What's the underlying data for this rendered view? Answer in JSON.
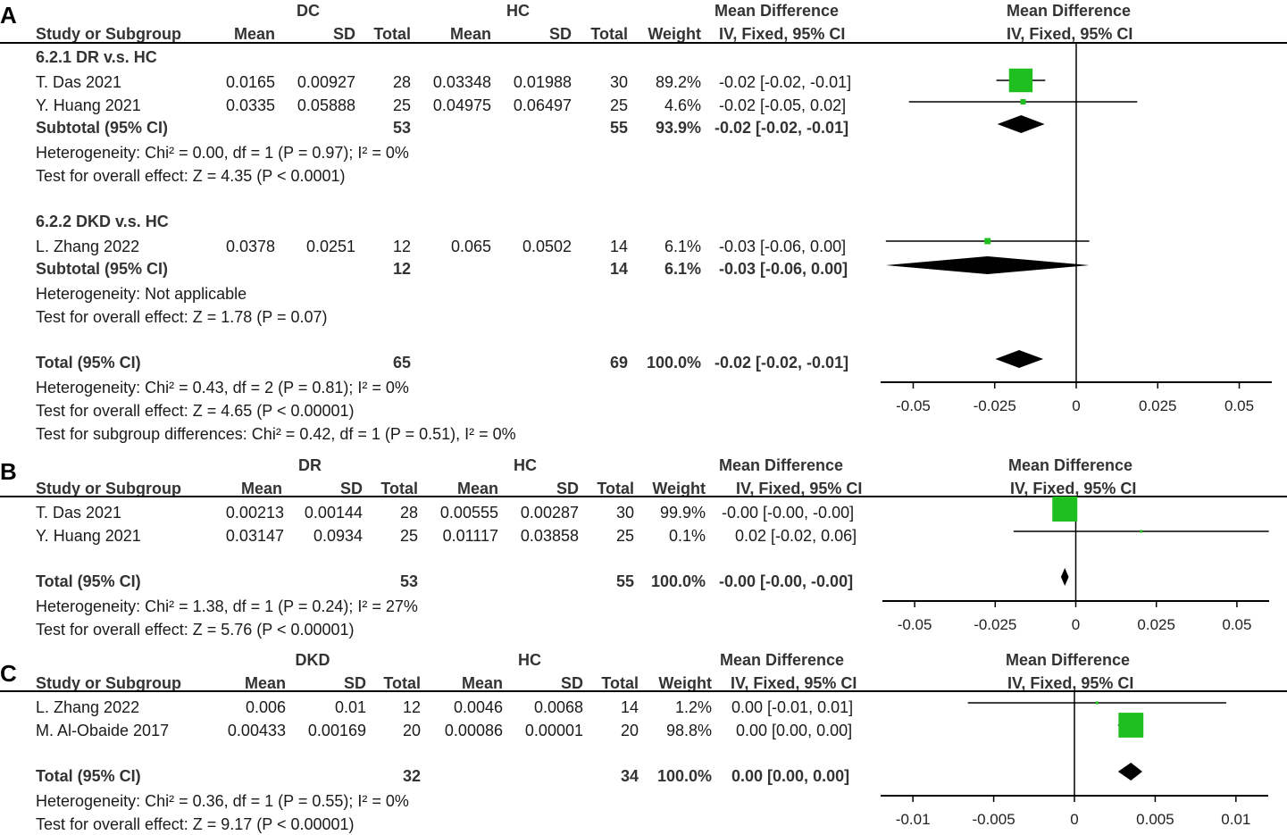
{
  "colors": {
    "study_square": "#1fbf1f",
    "diamond": "#000000",
    "lines": "#000000"
  },
  "panels": [
    {
      "letter": "A",
      "group1_label": "DC",
      "group2_label": "HC",
      "headers": {
        "study": "Study or Subgroup",
        "mean1": "Mean",
        "sd1": "SD",
        "total1": "Total",
        "mean2": "Mean",
        "sd2": "SD",
        "total2": "Total",
        "weight": "Weight",
        "md_title": "Mean Difference",
        "md_sub": "IV, Fixed, 95% CI",
        "plot_title": "Mean Difference",
        "plot_sub": "IV, Fixed, 95% CI"
      },
      "subgroups": [
        {
          "title": "6.2.1 DR v.s. HC",
          "studies": [
            {
              "name": "T. Das 2021",
              "mean1": "0.0165",
              "sd1": "0.00927",
              "total1": "28",
              "mean2": "0.03348",
              "sd2": "0.01988",
              "total2": "30",
              "weight": "89.2%",
              "ci_text": "-0.02 [-0.02, -0.01]"
            },
            {
              "name": "Y. Huang 2021",
              "mean1": "0.0335",
              "sd1": "0.05888",
              "total1": "25",
              "mean2": "0.04975",
              "sd2": "0.06497",
              "total2": "25",
              "weight": "4.6%",
              "ci_text": "-0.02 [-0.05, 0.02]"
            }
          ],
          "subtotal": {
            "label": "Subtotal (95% CI)",
            "total1": "53",
            "total2": "55",
            "weight": "93.9%",
            "ci_text": "-0.02 [-0.02, -0.01]"
          },
          "heterogeneity": "Heterogeneity: Chi² = 0.00, df = 1 (P = 0.97); I² = 0%",
          "overall": "Test for overall effect: Z = 4.35 (P < 0.0001)"
        },
        {
          "title": "6.2.2 DKD v.s. HC",
          "studies": [
            {
              "name": "L. Zhang 2022",
              "mean1": "0.0378",
              "sd1": "0.0251",
              "total1": "12",
              "mean2": "0.065",
              "sd2": "0.0502",
              "total2": "14",
              "weight": "6.1%",
              "ci_text": "-0.03 [-0.06, 0.00]"
            }
          ],
          "subtotal": {
            "label": "Subtotal (95% CI)",
            "total1": "12",
            "total2": "14",
            "weight": "6.1%",
            "ci_text": "-0.03 [-0.06, 0.00]"
          },
          "heterogeneity": "Heterogeneity: Not applicable",
          "overall": "Test for overall effect: Z = 1.78 (P = 0.07)"
        }
      ],
      "total": {
        "label": "Total (95% CI)",
        "total1": "65",
        "total2": "69",
        "weight": "100.0%",
        "ci_text": "-0.02 [-0.02, -0.01]"
      },
      "footer": [
        "Heterogeneity: Chi² = 0.43, df = 2 (P = 0.81); I² = 0%",
        "Test for overall effect: Z = 4.65 (P < 0.00001)",
        "Test for subgroup differences: Chi² = 0.42, df = 1 (P = 0.51), I² = 0%"
      ],
      "axis_ticks": [
        "-0.05",
        "-0.025",
        "0",
        "0.025",
        "0.05"
      ]
    },
    {
      "letter": "B",
      "group1_label": "DR",
      "group2_label": "HC",
      "headers": {
        "study": "Study or Subgroup",
        "mean1": "Mean",
        "sd1": "SD",
        "total1": "Total",
        "mean2": "Mean",
        "sd2": "SD",
        "total2": "Total",
        "weight": "Weight",
        "md_title": "Mean Difference",
        "md_sub": "IV, Fixed, 95% CI",
        "plot_title": "Mean Difference",
        "plot_sub": "IV, Fixed, 95% CI"
      },
      "studies": [
        {
          "name": "T. Das 2021",
          "mean1": "0.00213",
          "sd1": "0.00144",
          "total1": "28",
          "mean2": "0.00555",
          "sd2": "0.00287",
          "total2": "30",
          "weight": "99.9%",
          "ci_text": "-0.00 [-0.00, -0.00]"
        },
        {
          "name": "Y. Huang 2021",
          "mean1": "0.03147",
          "sd1": "0.0934",
          "total1": "25",
          "mean2": "0.01117",
          "sd2": "0.03858",
          "total2": "25",
          "weight": "0.1%",
          "ci_text": "0.02 [-0.02, 0.06]"
        }
      ],
      "total": {
        "label": "Total (95% CI)",
        "total1": "53",
        "total2": "55",
        "weight": "100.0%",
        "ci_text": "-0.00 [-0.00, -0.00]"
      },
      "footer": [
        "Heterogeneity: Chi² = 1.38, df = 1 (P = 0.24); I² = 27%",
        "Test for overall effect: Z = 5.76 (P < 0.00001)"
      ],
      "axis_ticks": [
        "-0.05",
        "-0.025",
        "0",
        "0.025",
        "0.05"
      ]
    },
    {
      "letter": "C",
      "group1_label": "DKD",
      "group2_label": "HC",
      "headers": {
        "study": "Study or Subgroup",
        "mean1": "Mean",
        "sd1": "SD",
        "total1": "Total",
        "mean2": "Mean",
        "sd2": "SD",
        "total2": "Total",
        "weight": "Weight",
        "md_title": "Mean Difference",
        "md_sub": "IV, Fixed, 95% CI",
        "plot_title": "Mean Difference",
        "plot_sub": "IV, Fixed, 95% CI"
      },
      "studies": [
        {
          "name": "L. Zhang 2022",
          "mean1": "0.006",
          "sd1": "0.01",
          "total1": "12",
          "mean2": "0.0046",
          "sd2": "0.0068",
          "total2": "14",
          "weight": "1.2%",
          "ci_text": "0.00 [-0.01, 0.01]"
        },
        {
          "name": "M. Al-Obaide 2017",
          "mean1": "0.00433",
          "sd1": "0.00169",
          "total1": "20",
          "mean2": "0.00086",
          "sd2": "0.00001",
          "total2": "20",
          "weight": "98.8%",
          "ci_text": "0.00 [0.00, 0.00]"
        }
      ],
      "total": {
        "label": "Total (95% CI)",
        "total1": "32",
        "total2": "34",
        "weight": "100.0%",
        "ci_text": "0.00 [0.00, 0.00]"
      },
      "footer": [
        "Heterogeneity: Chi² = 0.36, df = 1 (P = 0.55); I² = 0%",
        "Test for overall effect: Z = 9.17 (P < 0.00001)"
      ],
      "axis_ticks": [
        "-0.01",
        "-0.005",
        "0",
        "0.005",
        "0.01"
      ]
    }
  ],
  "chart_data": [
    {
      "type": "scatter",
      "panel": "A",
      "xlim": [
        -0.06,
        0.06
      ],
      "ticks": [
        -0.05,
        -0.025,
        0,
        0.025,
        0.05
      ],
      "points": [
        {
          "study": "T. Das 2021",
          "md": -0.017,
          "lo": -0.0245,
          "hi": -0.0095,
          "weight": 89.2
        },
        {
          "study": "Y. Huang 2021",
          "md": -0.0163,
          "lo": -0.0513,
          "hi": 0.0187,
          "weight": 4.6
        },
        {
          "study": "L. Zhang 2022",
          "md": -0.0272,
          "lo": -0.0584,
          "hi": 0.004,
          "weight": 6.1
        }
      ],
      "diamonds": [
        {
          "label": "Subtotal 6.2.1",
          "md": -0.0169,
          "lo": -0.0242,
          "hi": -0.0097
        },
        {
          "label": "Subtotal 6.2.2",
          "md": -0.0272,
          "lo": -0.0584,
          "hi": 0.004
        },
        {
          "label": "Total",
          "md": -0.0175,
          "lo": -0.0248,
          "hi": -0.0101
        }
      ]
    },
    {
      "type": "scatter",
      "panel": "B",
      "xlim": [
        -0.06,
        0.06
      ],
      "ticks": [
        -0.05,
        -0.025,
        0,
        0.025,
        0.05
      ],
      "points": [
        {
          "study": "T. Das 2021",
          "md": -0.0034,
          "lo": -0.0046,
          "hi": -0.0023,
          "weight": 99.9
        },
        {
          "study": "Y. Huang 2021",
          "md": 0.0203,
          "lo": -0.0193,
          "hi": 0.0599,
          "weight": 0.1
        }
      ],
      "diamonds": [
        {
          "label": "Total",
          "md": -0.0034,
          "lo": -0.0046,
          "hi": -0.0022
        }
      ]
    },
    {
      "type": "scatter",
      "panel": "C",
      "xlim": [
        -0.012,
        0.012
      ],
      "ticks": [
        -0.01,
        -0.005,
        0,
        0.005,
        0.01
      ],
      "points": [
        {
          "study": "L. Zhang 2022",
          "md": 0.0014,
          "lo": -0.0066,
          "hi": 0.0094,
          "weight": 1.2
        },
        {
          "study": "M. Al-Obaide 2017",
          "md": 0.0035,
          "lo": 0.0027,
          "hi": 0.0042,
          "weight": 98.8
        }
      ],
      "diamonds": [
        {
          "label": "Total",
          "md": 0.0035,
          "lo": 0.0027,
          "hi": 0.0042
        }
      ]
    }
  ]
}
